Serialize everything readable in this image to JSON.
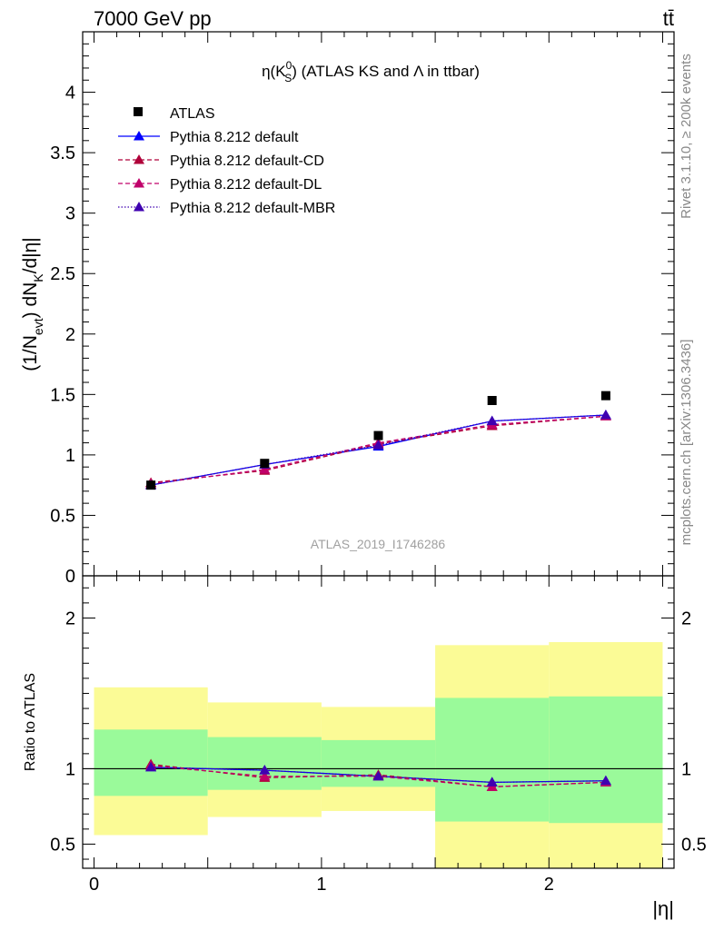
{
  "header": {
    "energy_label": "7000 GeV pp",
    "process_label": "tt̄"
  },
  "side_labels": {
    "rivet": "Rivet 3.1.10, ≥ 200k events",
    "mcplots": "mcplots.cern.ch [arXiv:1306.3436]"
  },
  "watermark": "ATLAS_2019_I1746286",
  "colors": {
    "atlas": "#000000",
    "default": "#0000ff",
    "cd": "#b0003a",
    "dl": "#c0006a",
    "mbr": "#3f00b0",
    "band_inner": "#9afa9a",
    "band_outer": "#fbfb96"
  },
  "chart_data": [
    {
      "type": "line",
      "title": "η(K_S^0) (ATLAS KS and Λ in ttbar)",
      "title_parts": {
        "base": "η(K",
        "sup": "0",
        "sub": "S",
        "rest": ") (ATLAS KS and Λ in ttbar)"
      },
      "ylabel": "(1/N_evt) dN_K/d|η|",
      "ylabel_parts": {
        "a": "(1/N",
        "sub1": "evt",
        "b": ") dN",
        "sub2": "K",
        "c": "/d|η|"
      },
      "xlim": [
        -0.05,
        2.55
      ],
      "ylim": [
        0,
        4.5
      ],
      "yticks": [
        0,
        0.5,
        1,
        1.5,
        2,
        2.5,
        3,
        3.5,
        4
      ],
      "ytick_labels": [
        "0",
        "0.5",
        "1",
        "1.5",
        "2",
        "2.5",
        "3",
        "3.5",
        "4"
      ],
      "x": [
        0.25,
        0.75,
        1.25,
        1.75,
        2.25
      ],
      "series": [
        {
          "name": "ATLAS",
          "key": "atlas",
          "style": "marker",
          "values": [
            0.75,
            0.93,
            1.16,
            1.45,
            1.49
          ]
        },
        {
          "name": "Pythia 8.212 default",
          "key": "default",
          "style": "solid",
          "values": [
            0.75,
            0.92,
            1.07,
            1.28,
            1.33
          ]
        },
        {
          "name": "Pythia 8.212 default-CD",
          "key": "cd",
          "style": "dashed",
          "values": [
            0.77,
            0.87,
            1.09,
            1.24,
            1.32
          ]
        },
        {
          "name": "Pythia 8.212 default-DL",
          "key": "dl",
          "style": "dashed",
          "values": [
            0.76,
            0.88,
            1.1,
            1.25,
            1.32
          ]
        },
        {
          "name": "Pythia 8.212 default-MBR",
          "key": "mbr",
          "style": "dotted",
          "values": [
            0.75,
            0.92,
            1.08,
            1.28,
            1.33
          ]
        }
      ]
    },
    {
      "type": "line",
      "title": "",
      "ylabel": "Ratio to ATLAS",
      "xlabel": "|η|",
      "xlim": [
        -0.05,
        2.55
      ],
      "ylim": [
        0.34,
        2.28
      ],
      "yticks": [
        0.5,
        1,
        2
      ],
      "ytick_labels": [
        "0.5",
        "1",
        "2"
      ],
      "xticks": [
        0,
        1,
        2
      ],
      "xtick_labels": [
        "0",
        "1",
        "2"
      ],
      "reference": 1,
      "bins": [
        [
          0,
          0.5
        ],
        [
          0.5,
          1
        ],
        [
          1,
          1.5
        ],
        [
          1.5,
          2
        ],
        [
          2,
          2.5
        ]
      ],
      "band_inner": [
        [
          0.82,
          1.26
        ],
        [
          0.86,
          1.21
        ],
        [
          0.88,
          1.19
        ],
        [
          0.65,
          1.47
        ],
        [
          0.64,
          1.48
        ]
      ],
      "band_outer": [
        [
          0.56,
          1.54
        ],
        [
          0.68,
          1.44
        ],
        [
          0.72,
          1.41
        ],
        [
          0.33,
          1.82
        ],
        [
          0.33,
          1.84
        ]
      ],
      "x": [
        0.25,
        0.75,
        1.25,
        1.75,
        2.25
      ],
      "series": [
        {
          "name": "Pythia 8.212 default",
          "key": "default",
          "style": "solid",
          "values": [
            1.01,
            0.99,
            0.95,
            0.91,
            0.92
          ]
        },
        {
          "name": "Pythia 8.212 default-CD",
          "key": "cd",
          "style": "dashed",
          "values": [
            1.03,
            0.94,
            0.96,
            0.88,
            0.91
          ]
        },
        {
          "name": "Pythia 8.212 default-DL",
          "key": "dl",
          "style": "dashed",
          "values": [
            1.02,
            0.95,
            0.95,
            0.88,
            0.91
          ]
        },
        {
          "name": "Pythia 8.212 default-MBR",
          "key": "mbr",
          "style": "dotted",
          "values": [
            1.01,
            0.99,
            0.95,
            0.91,
            0.92
          ]
        }
      ]
    }
  ]
}
